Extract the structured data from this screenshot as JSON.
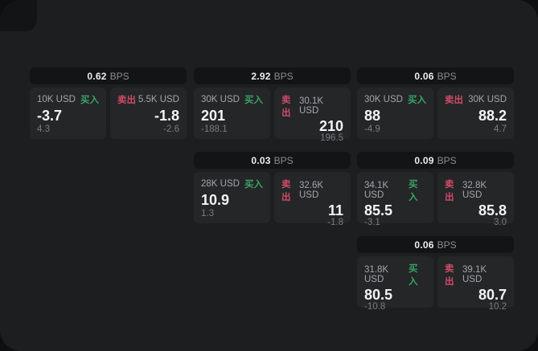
{
  "page": {
    "bps_unit": "BPS",
    "buy_label": "买入",
    "sell_label": "卖出"
  },
  "colors": {
    "screen_bg": "#1d1e20",
    "panel_bg": "#242628",
    "header_bg": "#131415",
    "buy_green": "#3aa366",
    "sell_red": "#d04b68"
  },
  "cards": [
    {
      "bps": "0.62",
      "buy": {
        "amount": "10K USD",
        "value": "-3.7",
        "sub": "4.3"
      },
      "sell": {
        "amount": "5.5K USD",
        "value": "-1.8",
        "sub": "-2.6"
      }
    },
    {
      "bps": "2.92",
      "buy": {
        "amount": "30K USD",
        "value": "201",
        "sub": "-188.1"
      },
      "sell": {
        "amount": "30.1K USD",
        "value": "210",
        "sub": "196.5"
      }
    },
    {
      "bps": "0.06",
      "buy": {
        "amount": "30K USD",
        "value": "88",
        "sub": "-4.9"
      },
      "sell": {
        "amount": "30K USD",
        "value": "88.2",
        "sub": "4.7"
      }
    },
    {
      "bps": "0.03",
      "buy": {
        "amount": "28K USD",
        "value": "10.9",
        "sub": "1.3"
      },
      "sell": {
        "amount": "32.6K USD",
        "value": "11",
        "sub": "-1.8"
      }
    },
    {
      "bps": "0.09",
      "buy": {
        "amount": "34.1K USD",
        "value": "85.5",
        "sub": "-3.1"
      },
      "sell": {
        "amount": "32.8K USD",
        "value": "85.8",
        "sub": "3.0"
      }
    },
    {
      "bps": "0.06",
      "buy": {
        "amount": "31.8K USD",
        "value": "80.5",
        "sub": "-10.8"
      },
      "sell": {
        "amount": "39.1K USD",
        "value": "80.7",
        "sub": "10.2"
      }
    }
  ]
}
